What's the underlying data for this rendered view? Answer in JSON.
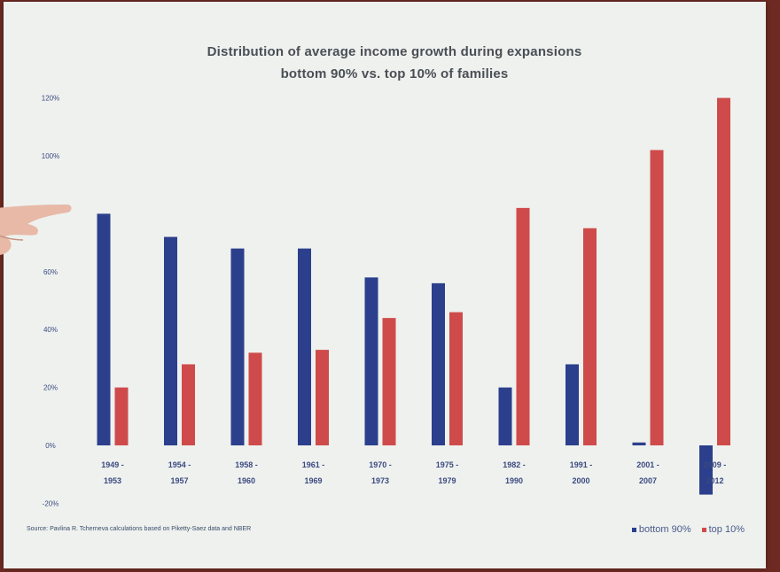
{
  "chart_data": {
    "type": "bar",
    "title": "Distribution of average income growth during expansions",
    "subtitle": "bottom 90% vs. top 10% of families",
    "categories": [
      [
        "1949 -",
        "1953"
      ],
      [
        "1954 -",
        "1957"
      ],
      [
        "1958 -",
        "1960"
      ],
      [
        "1961 -",
        "1969"
      ],
      [
        "1970 -",
        "1973"
      ],
      [
        "1975 -",
        "1979"
      ],
      [
        "1982 -",
        "1990"
      ],
      [
        "1991 -",
        "2000"
      ],
      [
        "2001 -",
        "2007"
      ],
      [
        "2009 -",
        "2012"
      ]
    ],
    "series": [
      {
        "name": "bottom 90%",
        "color": "#2b3f8c",
        "values": [
          80,
          72,
          68,
          68,
          58,
          56,
          20,
          28,
          1,
          -17
        ]
      },
      {
        "name": "top 10%",
        "color": "#cf4b4b",
        "values": [
          20,
          28,
          32,
          33,
          44,
          46,
          82,
          75,
          102,
          120
        ]
      }
    ],
    "ylim": [
      -20,
      120
    ],
    "yticks": [
      -20,
      0,
      20,
      40,
      60,
      100,
      120
    ],
    "ytick_labels": [
      "-20%",
      "0%",
      "20%",
      "40%",
      "60%",
      "100%",
      "120%"
    ],
    "xlabel": "",
    "ylabel": "",
    "legend_position": "bottom-right",
    "grid": false
  },
  "source_note": "Source: Pavlina R. Tcherneva calculations based on Piketty-Saez data and NBER",
  "legend": {
    "bottom_label": "bottom 90%",
    "top_label": "top 10%"
  }
}
